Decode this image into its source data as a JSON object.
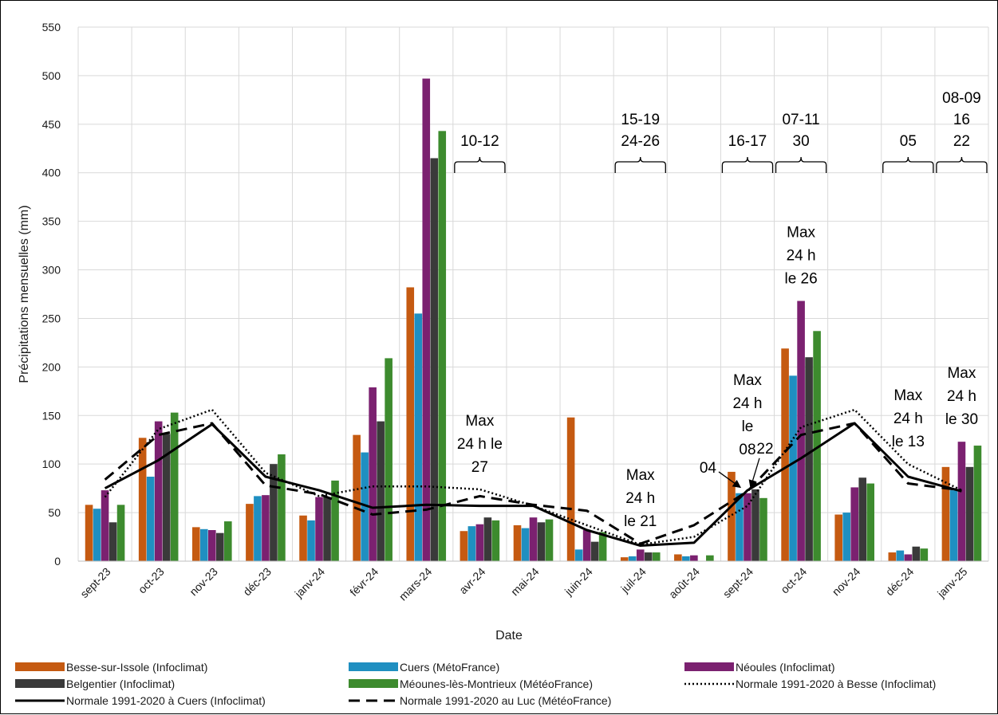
{
  "chart_data": {
    "type": "bar",
    "xlabel": "Date",
    "ylabel": "Précipitations mensuelles (mm)",
    "ylim": [
      0,
      550
    ],
    "yticks": [
      0,
      50,
      100,
      150,
      200,
      250,
      300,
      350,
      400,
      450,
      500,
      550
    ],
    "grid": true,
    "legend_position": "bottom",
    "categories": [
      "sept-23",
      "oct-23",
      "nov-23",
      "déc-23",
      "janv-24",
      "févr-24",
      "mars-24",
      "avr-24",
      "mai-24",
      "juin-24",
      "juil-24",
      "août-24",
      "sept-24",
      "oct-24",
      "nov-24",
      "déc-24",
      "janv-25"
    ],
    "bar_series": [
      {
        "name": "Besse-sur-Issole (Infoclimat)",
        "color": "#c55a11",
        "values": [
          58,
          127,
          35,
          59,
          47,
          130,
          282,
          31,
          37,
          148,
          4,
          7,
          92,
          219,
          48,
          9,
          97
        ]
      },
      {
        "name": "Cuers (MétoFrance)",
        "color": "#1f8fc1",
        "values": [
          54,
          87,
          33,
          67,
          42,
          112,
          255,
          36,
          34,
          12,
          5,
          5,
          70,
          191,
          50,
          11,
          73
        ]
      },
      {
        "name": "Néoules (Infoclimat)",
        "color": "#7b2170",
        "values": [
          73,
          144,
          32,
          68,
          66,
          179,
          497,
          38,
          45,
          32,
          12,
          6,
          70,
          268,
          76,
          7,
          123
        ]
      },
      {
        "name": "Belgentier (Infoclimat)",
        "color": "#3a3a3a",
        "values": [
          40,
          131,
          29,
          100,
          66,
          144,
          415,
          45,
          40,
          20,
          9,
          0,
          74,
          210,
          86,
          15,
          97
        ]
      },
      {
        "name": "Méounes-lès-Montrieux (MétéoFrance)",
        "color": "#3d8b2e",
        "values": [
          58,
          153,
          41,
          110,
          83,
          209,
          443,
          42,
          43,
          30,
          9,
          6,
          65,
          237,
          80,
          13,
          119
        ]
      }
    ],
    "line_series": [
      {
        "name": "Normale 1991-2020 à Besse (Infoclimat)",
        "style": "dotted",
        "values": [
          66,
          136,
          156,
          91,
          67,
          77,
          77,
          74,
          57,
          37,
          17,
          25,
          57,
          138,
          156,
          100,
          73
        ]
      },
      {
        "name": "Normale 1991-2020 à Cuers (Infoclimat)",
        "style": "solid",
        "values": [
          75,
          104,
          141,
          87,
          73,
          55,
          58,
          57,
          57,
          32,
          16,
          19,
          73,
          106,
          142,
          87,
          72
        ]
      },
      {
        "name": "Normale 1991-2020 au Luc (MétéoFrance)",
        "style": "dashed",
        "values": [
          84,
          130,
          142,
          78,
          69,
          48,
          53,
          67,
          58,
          52,
          18,
          37,
          72,
          130,
          142,
          80,
          73
        ]
      }
    ],
    "event_annotations": [
      {
        "text": [
          "10-12"
        ],
        "start": "avr-24",
        "end": "avr-24"
      },
      {
        "text": [
          "15-19",
          "24-26"
        ],
        "start": "juil-24",
        "end": "juil-24"
      },
      {
        "text": [
          "16-17"
        ],
        "start": "sept-24",
        "end": "sept-24"
      },
      {
        "text": [
          "07-11",
          "30"
        ],
        "start": "oct-24",
        "end": "oct-24"
      },
      {
        "text": [
          "05"
        ],
        "start": "déc-24",
        "end": "déc-24"
      },
      {
        "text": [
          "08-09",
          "16",
          "22"
        ],
        "start": "janv-25",
        "end": "janv-25"
      }
    ],
    "max_annotations": [
      {
        "text": [
          "Max",
          "24 h le",
          "27"
        ],
        "category": "avr-24"
      },
      {
        "text": [
          "Max",
          "24 h",
          "le 21"
        ],
        "category": "juil-24"
      },
      {
        "text": [
          "Max",
          "24 h",
          "le",
          "08"
        ],
        "category": "sept-24"
      },
      {
        "text": [
          "Max",
          "24 h",
          "le 26"
        ],
        "category": "oct-24"
      },
      {
        "text": [
          "Max",
          "24 h",
          "le 13"
        ],
        "category": "déc-24"
      },
      {
        "text": [
          "Max",
          "24 h",
          "le 30"
        ],
        "category": "janv-25"
      }
    ],
    "arrow_labels": [
      {
        "text": "04",
        "category": "sept-24"
      },
      {
        "text": "22",
        "category": "sept-24"
      }
    ]
  }
}
